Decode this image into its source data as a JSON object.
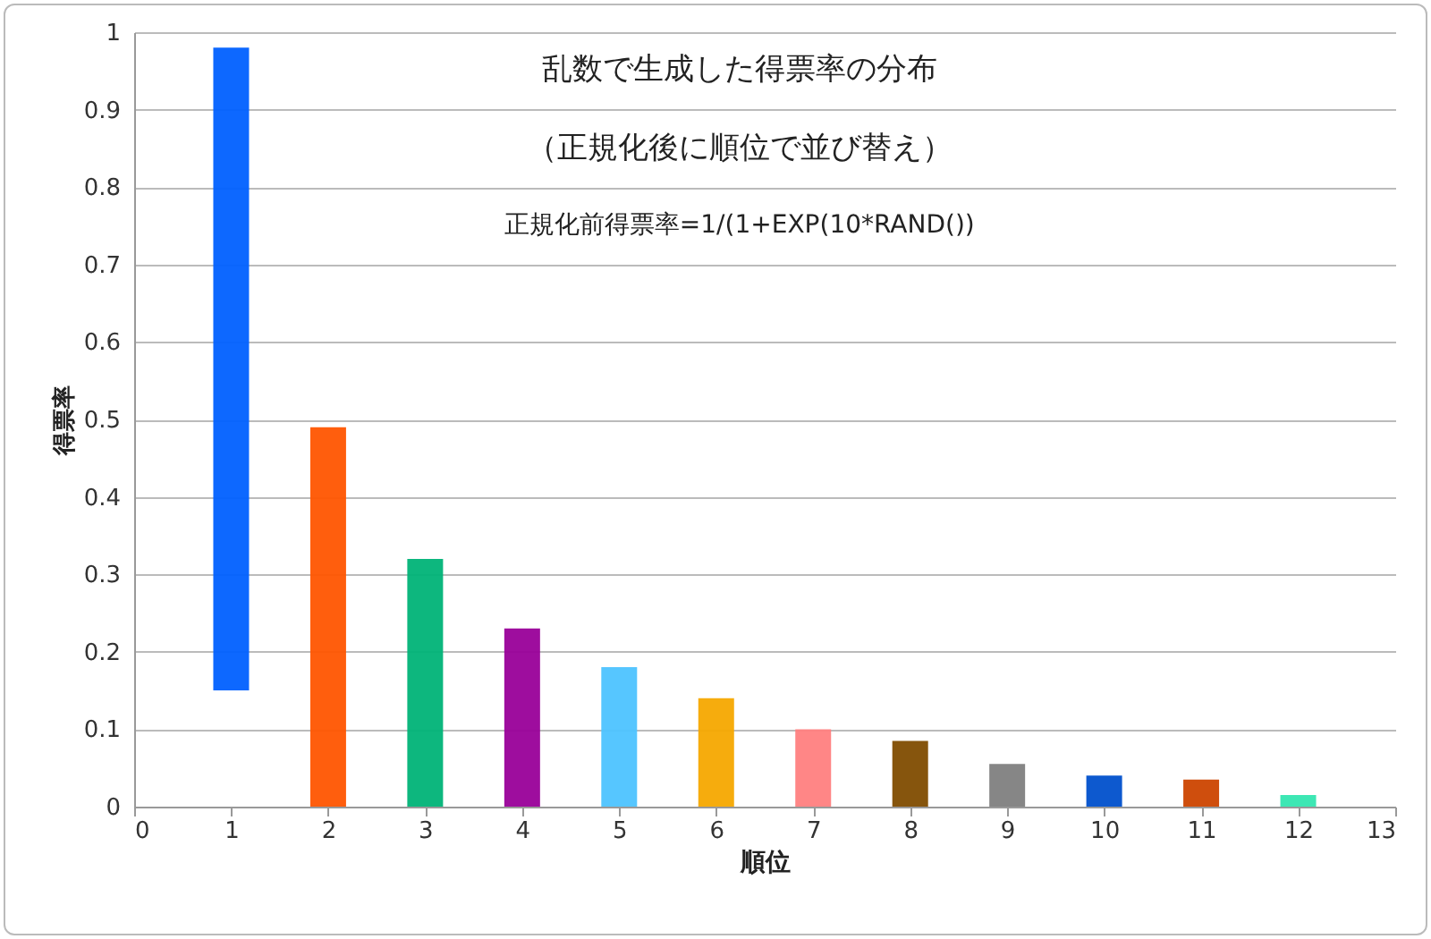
{
  "chart_data": {
    "type": "bar",
    "title": "乱数で生成した得票率の分布",
    "subtitle": "（正規化後に順位で並び替え）",
    "annotations": [
      "正規化前得票率=1/(1+EXP(10*RAND())"
    ],
    "xlabel": "順位",
    "ylabel": "得票率",
    "x": [
      1,
      2,
      3,
      4,
      5,
      6,
      7,
      8,
      9,
      10,
      11,
      12
    ],
    "base": [
      0.15,
      0,
      0,
      0,
      0,
      0,
      0,
      0,
      0,
      0,
      0,
      0
    ],
    "values": [
      0.83,
      0.49,
      0.32,
      0.23,
      0.18,
      0.14,
      0.1,
      0.085,
      0.055,
      0.04,
      0.035,
      0.015
    ],
    "colors": [
      "#0060ff",
      "#ff5500",
      "#00b377",
      "#990099",
      "#4dc3ff",
      "#f5a800",
      "#ff8080",
      "#804c00",
      "#808080",
      "#0050cc",
      "#cc4400",
      "#33e6b0"
    ],
    "xlim": [
      0,
      13
    ],
    "xticks": [
      0,
      1,
      2,
      3,
      4,
      5,
      6,
      7,
      8,
      9,
      10,
      11,
      12,
      13
    ],
    "ylim": [
      0,
      1
    ],
    "yticks": [
      0,
      0.1,
      0.2,
      0.3,
      0.4,
      0.5,
      0.6,
      0.7,
      0.8,
      0.9,
      1
    ],
    "grid": "y"
  }
}
